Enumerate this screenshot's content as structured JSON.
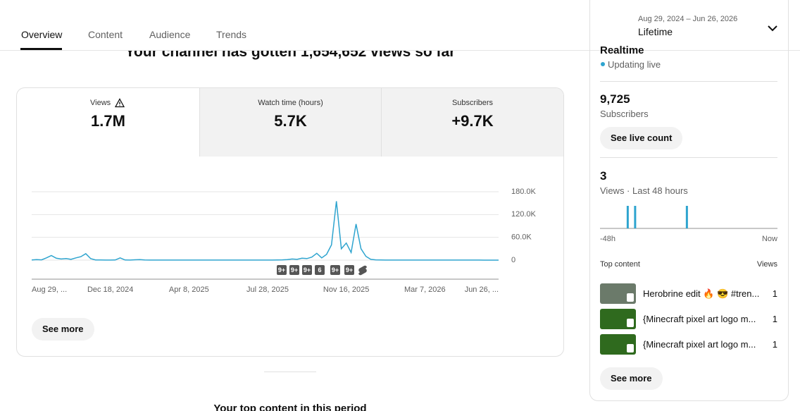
{
  "tabs": [
    "Overview",
    "Content",
    "Audience",
    "Trends"
  ],
  "date_range": {
    "range": "Aug 29, 2024 – Jun 26, 2026",
    "label": "Lifetime"
  },
  "headline": "Your channel has gotten 1,654,652 views so far",
  "metrics": [
    {
      "label": "Views",
      "value": "1.7M"
    },
    {
      "label": "Watch time (hours)",
      "value": "5.7K"
    },
    {
      "label": "Subscribers",
      "value": "+9.7K"
    }
  ],
  "chart_data": [
    {
      "type": "line",
      "color": "#2ea4cf",
      "categories": [
        "Aug 29, ...",
        null,
        null,
        null,
        null,
        null,
        null,
        null,
        null,
        null,
        null,
        null,
        null,
        null,
        null,
        null,
        "Dec 18, 2024",
        null,
        null,
        null,
        null,
        null,
        null,
        null,
        null,
        null,
        null,
        null,
        null,
        null,
        null,
        null,
        "Apr 8, 2025",
        null,
        null,
        null,
        null,
        null,
        null,
        null,
        null,
        null,
        null,
        null,
        null,
        null,
        null,
        null,
        "Jul 28, 2025",
        null,
        null,
        null,
        null,
        null,
        null,
        null,
        null,
        null,
        null,
        null,
        null,
        null,
        null,
        null,
        "Nov 16, 2025",
        null,
        null,
        null,
        null,
        null,
        null,
        null,
        null,
        null,
        null,
        null,
        null,
        null,
        null,
        null,
        "Mar 7, 2026",
        null,
        null,
        null,
        null,
        null,
        null,
        null,
        null,
        null,
        null,
        null,
        null,
        null,
        null,
        "Jun 26, ..."
      ],
      "values": [
        500,
        1500,
        800,
        6000,
        12000,
        5000,
        3000,
        4000,
        2000,
        6000,
        9000,
        17000,
        4000,
        500,
        300,
        200,
        200,
        300,
        6000,
        300,
        200,
        1000,
        1500,
        300,
        100,
        100,
        200,
        100,
        100,
        100,
        100,
        100,
        100,
        100,
        100,
        100,
        100,
        100,
        100,
        100,
        100,
        100,
        100,
        100,
        100,
        100,
        100,
        100,
        200,
        200,
        400,
        800,
        1500,
        3000,
        2000,
        5000,
        4000,
        8000,
        18000,
        6000,
        15000,
        40000,
        155000,
        30000,
        45000,
        20000,
        95000,
        30000,
        10000,
        2000,
        800,
        300,
        200,
        200,
        100,
        100,
        100,
        100,
        100,
        100,
        100,
        100,
        100,
        100,
        100,
        100,
        100,
        100,
        100,
        100,
        100,
        100,
        0,
        0,
        0,
        0
      ],
      "ylim": [
        0,
        180000
      ],
      "yticks": [
        0,
        {
          "value": 60000,
          "label": "60.0K"
        },
        {
          "value": 120000,
          "label": "120.0K"
        },
        {
          "value": 180000,
          "label": "180.0K"
        }
      ],
      "grid": true,
      "annotations": [
        "9+",
        "9+",
        "9+",
        "6",
        "9+",
        "9+"
      ]
    },
    {
      "type": "bar",
      "color": "#2ea4cf",
      "categories": [
        "-48h",
        null,
        null,
        null,
        null,
        null,
        null,
        null,
        null,
        null,
        null,
        null,
        null,
        null,
        null,
        null,
        null,
        null,
        null,
        null,
        null,
        null,
        null,
        null,
        null,
        null,
        null,
        null,
        null,
        null,
        null,
        null,
        null,
        null,
        null,
        null,
        null,
        null,
        null,
        null,
        null,
        null,
        null,
        null,
        null,
        null,
        null,
        "Now"
      ],
      "values": [
        0,
        0,
        0,
        0,
        0,
        0,
        0,
        1,
        0,
        1,
        0,
        0,
        0,
        0,
        0,
        0,
        0,
        0,
        0,
        0,
        0,
        0,
        0,
        1,
        0,
        0,
        0,
        0,
        0,
        0,
        0,
        0,
        0,
        0,
        0,
        0,
        0,
        0,
        0,
        0,
        0,
        0,
        0,
        0,
        0,
        0,
        0,
        0
      ],
      "ylim": [
        0,
        1
      ]
    }
  ],
  "see_more": "See more",
  "realtime": {
    "title": "Realtime",
    "status": "Updating live",
    "subscribers": "9,725",
    "subscribers_label": "Subscribers",
    "live_count": "See live count",
    "views": "3",
    "views_label": "Views · Last 48 hours",
    "top_content": {
      "title": "Top content",
      "views_header": "Views",
      "rows": [
        {
          "title": "Herobrine edit 🔥 😎 #tren...",
          "views": "1"
        },
        {
          "title": "{Minecraft pixel art logo m...",
          "views": "1"
        },
        {
          "title": "{Minecraft pixel art logo m...",
          "views": "1"
        }
      ]
    },
    "see_more": "See more"
  },
  "next_section": "Your top content in this period"
}
